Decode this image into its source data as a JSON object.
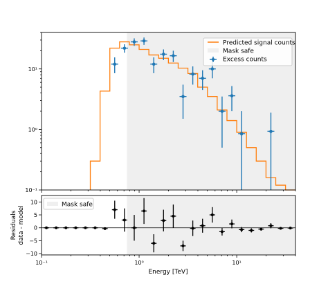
{
  "colors": {
    "signal": "#ff7f0e",
    "excess": "#1f77b4",
    "mask": "#efefef",
    "residual": "#000000"
  },
  "chart_data": [
    {
      "type": "line",
      "panel": "top",
      "yscale": "log",
      "xscale": "log",
      "xlim": [
        0.1,
        40
      ],
      "ylim": [
        0.1,
        40
      ],
      "xticks": [
        {
          "value": 0.1,
          "label": ""
        },
        {
          "value": 1,
          "label": ""
        },
        {
          "value": 10,
          "label": ""
        }
      ],
      "yticks": [
        {
          "value": 0.1,
          "label": "10⁻¹"
        },
        {
          "value": 1,
          "label": "10⁰"
        },
        {
          "value": 10,
          "label": "10¹"
        }
      ],
      "mask_safe_range": [
        0.75,
        40
      ],
      "legend": {
        "position": "upper right",
        "entries": [
          "Predicted signal counts",
          "Mask safe",
          "Excess counts"
        ]
      },
      "edges": [
        0.1,
        0.1259,
        0.1585,
        0.1995,
        0.2512,
        0.3162,
        0.3981,
        0.5012,
        0.631,
        0.7943,
        1.0,
        1.2589,
        1.5849,
        1.9953,
        2.5119,
        3.1623,
        3.9811,
        5.0119,
        6.3096,
        7.9433,
        10.0,
        12.589,
        15.849,
        19.953,
        25.119,
        31.623,
        39.811
      ],
      "series": [
        {
          "name": "Predicted signal counts",
          "kind": "step",
          "values": [
            0,
            0,
            0,
            0,
            0,
            0.3,
            4.3,
            22,
            28,
            25,
            21,
            17,
            15,
            12.5,
            10.3,
            8.4,
            5.0,
            3.5,
            2.1,
            1.4,
            0.9,
            0.5,
            0.3,
            0.16,
            0.12,
            0
          ]
        },
        {
          "name": "Excess counts",
          "kind": "errorbar",
          "points": [
            {
              "x": 0.562,
              "y": 12,
              "lo": 8.5,
              "hi": 15.5
            },
            {
              "x": 0.708,
              "y": 22,
              "lo": 18.5,
              "hi": 25.5
            },
            {
              "x": 0.891,
              "y": 28,
              "lo": 24,
              "hi": 32
            },
            {
              "x": 1.122,
              "y": 29,
              "lo": 25,
              "hi": 33
            },
            {
              "x": 1.413,
              "y": 12,
              "lo": 8.5,
              "hi": 15.5
            },
            {
              "x": 1.778,
              "y": 17.5,
              "lo": 14,
              "hi": 21
            },
            {
              "x": 2.239,
              "y": 16.5,
              "lo": 13,
              "hi": 20
            },
            {
              "x": 2.818,
              "y": 3.5,
              "lo": 1.5,
              "hi": 5.5
            },
            {
              "x": 3.548,
              "y": 8.2,
              "lo": 5.5,
              "hi": 11
            },
            {
              "x": 4.467,
              "y": 7.0,
              "lo": 4.5,
              "hi": 9.5
            },
            {
              "x": 5.623,
              "y": 10,
              "lo": 7,
              "hi": 13
            },
            {
              "x": 7.079,
              "y": 2.0,
              "lo": 0.5,
              "hi": 3.5
            },
            {
              "x": 8.913,
              "y": 3.6,
              "lo": 2,
              "hi": 5.2
            },
            {
              "x": 11.22,
              "y": 0.85,
              "lo": 0.1,
              "hi": 2
            },
            {
              "x": 22.39,
              "y": 0.93,
              "lo": 0.1,
              "hi": 1.9
            }
          ]
        }
      ]
    },
    {
      "type": "scatter",
      "panel": "bottom",
      "xscale": "log",
      "xlim": [
        0.1,
        40
      ],
      "ylim": [
        -10.5,
        12.5
      ],
      "xlabel": "Energy [TeV]",
      "ylabel_lines": [
        "Residuals",
        "data - model"
      ],
      "xticks": [
        {
          "value": 0.1,
          "label": "10⁻¹"
        },
        {
          "value": 1,
          "label": "10⁰"
        },
        {
          "value": 10,
          "label": "10¹"
        }
      ],
      "yticks": [
        {
          "value": -10,
          "label": "−10"
        },
        {
          "value": -5,
          "label": "−5"
        },
        {
          "value": 0,
          "label": "0"
        },
        {
          "value": 5,
          "label": "5"
        },
        {
          "value": 10,
          "label": "10"
        }
      ],
      "zero_line": true,
      "mask_safe_range": [
        0.75,
        40
      ],
      "legend": {
        "position": "upper left",
        "entries": [
          "Mask safe"
        ]
      },
      "series": [
        {
          "name": "Residuals",
          "kind": "errorbar",
          "points": [
            {
              "x": 0.1122,
              "y": 0,
              "err": 0.3
            },
            {
              "x": 0.1413,
              "y": 0,
              "err": 0.3
            },
            {
              "x": 0.1778,
              "y": 0,
              "err": 0.3
            },
            {
              "x": 0.2239,
              "y": 0,
              "err": 0.3
            },
            {
              "x": 0.2818,
              "y": 0,
              "err": 0.3
            },
            {
              "x": 0.3548,
              "y": 0,
              "err": 0.3
            },
            {
              "x": 0.4467,
              "y": -0.3,
              "err": 0.5
            },
            {
              "x": 0.5623,
              "y": 7,
              "err": 3.5
            },
            {
              "x": 0.7079,
              "y": 3,
              "err": 4.5
            },
            {
              "x": 0.8913,
              "y": 0,
              "err": 5
            },
            {
              "x": 1.122,
              "y": 6.5,
              "err": 5
            },
            {
              "x": 1.413,
              "y": -6,
              "err": 3.5
            },
            {
              "x": 1.778,
              "y": 2.8,
              "err": 4.2
            },
            {
              "x": 2.239,
              "y": 4.5,
              "err": 4.5
            },
            {
              "x": 2.818,
              "y": -7,
              "err": 2
            },
            {
              "x": 3.548,
              "y": -0.2,
              "err": 3
            },
            {
              "x": 4.467,
              "y": 0.8,
              "err": 2.7
            },
            {
              "x": 5.623,
              "y": 5,
              "err": 3
            },
            {
              "x": 7.079,
              "y": -1.5,
              "err": 1.5
            },
            {
              "x": 8.913,
              "y": 1.5,
              "err": 1.7
            },
            {
              "x": 11.22,
              "y": -0.7,
              "err": 1
            },
            {
              "x": 14.13,
              "y": -1.0,
              "err": 0.8
            },
            {
              "x": 17.78,
              "y": -0.5,
              "err": 0.6
            },
            {
              "x": 22.39,
              "y": 0.8,
              "err": 1
            },
            {
              "x": 28.18,
              "y": -0.2,
              "err": 0.3
            },
            {
              "x": 35.48,
              "y": -0.1,
              "err": 0.3
            }
          ]
        }
      ]
    }
  ]
}
